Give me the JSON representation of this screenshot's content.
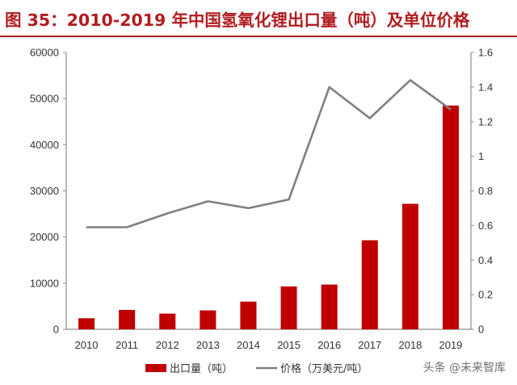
{
  "title": "图 35：2010-2019 年中国氢氧化锂出口量（吨）及单位价格",
  "watermark": "头条 @未来智库",
  "chart_data": {
    "type": "bar",
    "categories": [
      "2010",
      "2011",
      "2012",
      "2013",
      "2014",
      "2015",
      "2016",
      "2017",
      "2018",
      "2019"
    ],
    "series": [
      {
        "name": "出口量（吨）",
        "type": "bar",
        "axis": "left",
        "color": "#c00000",
        "values": [
          2400,
          4200,
          3400,
          4100,
          6000,
          9300,
          9700,
          19300,
          27200,
          48500
        ]
      },
      {
        "name": "价格（万美元/吨）",
        "type": "line",
        "axis": "right",
        "color": "#808080",
        "values": [
          0.59,
          0.59,
          0.67,
          0.74,
          0.7,
          0.75,
          1.4,
          1.22,
          1.44,
          1.27
        ]
      }
    ],
    "y_left": {
      "min": 0,
      "max": 60000,
      "ticks": [
        "0",
        "10000",
        "20000",
        "30000",
        "40000",
        "50000",
        "60000"
      ]
    },
    "y_right": {
      "min": 0,
      "max": 1.6,
      "ticks": [
        "0",
        "0.2",
        "0.4",
        "0.6",
        "0.8",
        "1",
        "1.2",
        "1.4",
        "1.6"
      ]
    },
    "legend": {
      "position": "bottom",
      "items": [
        {
          "label": "出口量（吨）",
          "kind": "bar",
          "color": "#c00000"
        },
        {
          "label": "价格（万美元/吨）",
          "kind": "line",
          "color": "#808080"
        }
      ]
    },
    "grid": false
  }
}
